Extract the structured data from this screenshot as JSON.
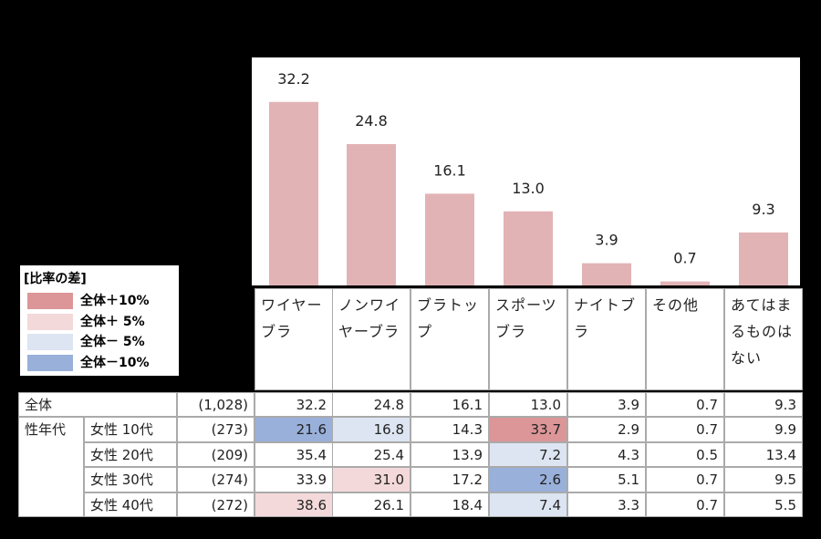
{
  "chart_data": {
    "type": "bar",
    "categories": [
      "ワイヤーブラ",
      "ノンワイヤーブラ",
      "ブラトップ",
      "スポーツブラ",
      "ナイトブラ",
      "その他",
      "あてはまるものはない"
    ],
    "values": [
      32.2,
      24.8,
      16.1,
      13.0,
      3.9,
      0.7,
      9.3
    ],
    "value_labels": [
      "32.2",
      "24.8",
      "16.1",
      "13.0",
      "3.9",
      "0.7",
      "9.3"
    ],
    "color": "#e2b3b5",
    "ylim": [
      0,
      40
    ]
  },
  "legend": {
    "title": "[比率の差]",
    "items": [
      {
        "label": "全体＋10%",
        "color": "#dc9698"
      },
      {
        "label": "全体＋ 5%",
        "color": "#f4d9da"
      },
      {
        "label": "全体－ 5%",
        "color": "#dce5f1"
      },
      {
        "label": "全体－10%",
        "color": "#98b0da"
      }
    ]
  },
  "table": {
    "total": {
      "label": "全体",
      "n": "(1,028)",
      "cells": [
        "32.2",
        "24.8",
        "16.1",
        "13.0",
        "3.9",
        "0.7",
        "9.3"
      ]
    },
    "group_label": "性年代",
    "rows": [
      {
        "label": "女性 10代",
        "n": "(273)",
        "cells": [
          "21.6",
          "16.8",
          "14.3",
          "33.7",
          "2.9",
          "0.7",
          "9.9"
        ],
        "levels": [
          3,
          2,
          null,
          0,
          null,
          null,
          null
        ]
      },
      {
        "label": "女性 20代",
        "n": "(209)",
        "cells": [
          "35.4",
          "25.4",
          "13.9",
          "7.2",
          "4.3",
          "0.5",
          "13.4"
        ],
        "levels": [
          null,
          null,
          null,
          2,
          null,
          null,
          null
        ]
      },
      {
        "label": "女性 30代",
        "n": "(274)",
        "cells": [
          "33.9",
          "31.0",
          "17.2",
          "2.6",
          "5.1",
          "0.7",
          "9.5"
        ],
        "levels": [
          null,
          1,
          null,
          3,
          null,
          null,
          null
        ]
      },
      {
        "label": "女性 40代",
        "n": "(272)",
        "cells": [
          "38.6",
          "26.1",
          "18.4",
          "7.4",
          "3.3",
          "0.7",
          "5.5"
        ],
        "levels": [
          1,
          null,
          null,
          2,
          null,
          null,
          null
        ]
      }
    ]
  }
}
